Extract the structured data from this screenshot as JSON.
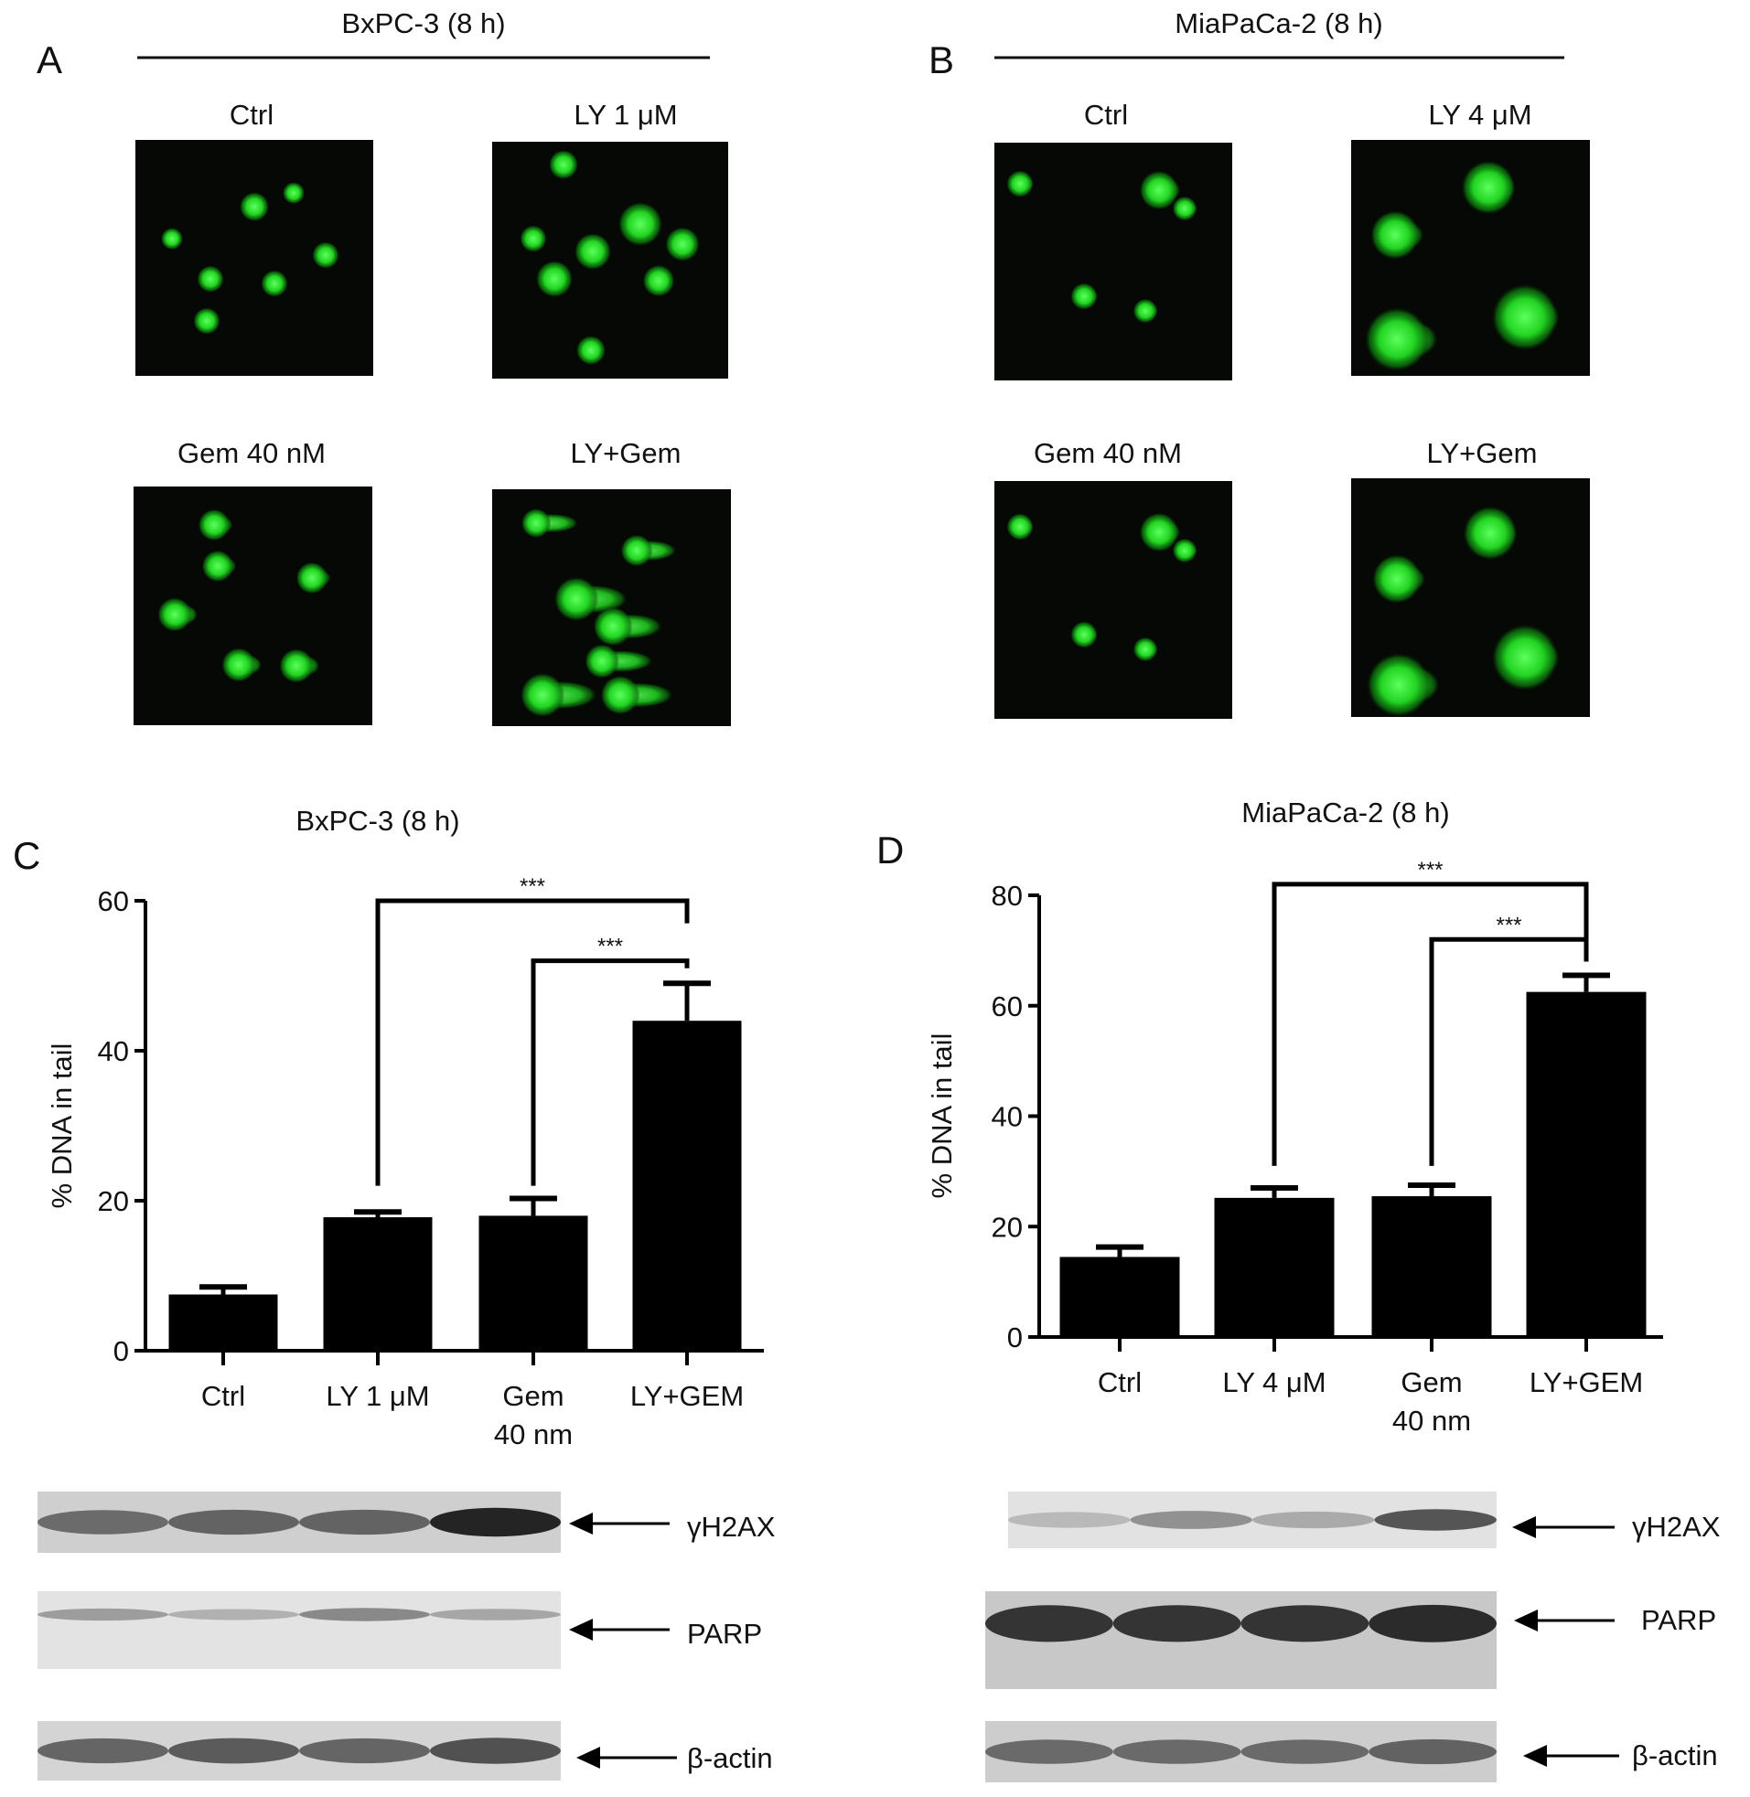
{
  "panels": {
    "A": {
      "letter": "A",
      "title": "BxPC-3 (8 h)",
      "images": [
        "Ctrl",
        "LY 1 μM",
        "Gem 40 nM",
        "LY+Gem"
      ]
    },
    "B": {
      "letter": "B",
      "title": "MiaPaCa-2 (8 h)",
      "images": [
        "Ctrl",
        "LY 4 μM",
        "Gem 40 nM",
        "LY+Gem"
      ]
    },
    "C": {
      "letter": "C"
    },
    "D": {
      "letter": "D"
    }
  },
  "colors": {
    "comet": "#2fdc2f",
    "background": "#050805",
    "bars": "#000000"
  },
  "chart_data": [
    {
      "type": "bar",
      "title": "BxPC-3 (8 h)",
      "ylabel": "% DNA in tail",
      "xlabel": "",
      "ylim": [
        0,
        60
      ],
      "yticks": [
        "0",
        "20",
        "40",
        "60"
      ],
      "categories": [
        "Ctrl",
        "LY 1 μM",
        "Gem|40 nm",
        "LY+GEM"
      ],
      "values": [
        7.5,
        17.8,
        18,
        44
      ],
      "error_upper": [
        8.5,
        18.5,
        20.3,
        49
      ],
      "significance": [
        {
          "from": "LY 1 μM",
          "to": "LY+GEM",
          "label": "***"
        },
        {
          "from": "Gem|40 nm",
          "to": "LY+GEM",
          "label": "***"
        }
      ],
      "grid": false
    },
    {
      "type": "bar",
      "title": "MiaPaCa-2 (8 h)",
      "ylabel": "% DNA in tail",
      "xlabel": "",
      "ylim": [
        0,
        80
      ],
      "yticks": [
        "0",
        "20",
        "40",
        "60",
        "80"
      ],
      "categories": [
        "Ctrl",
        "LY 4 μM",
        "Gem|40 nm",
        "LY+GEM"
      ],
      "values": [
        14.5,
        25.2,
        25.5,
        62.5
      ],
      "error_upper": [
        16.3,
        27,
        27.5,
        65.5
      ],
      "significance": [
        {
          "from": "LY 4 μM",
          "to": "LY+GEM",
          "label": "***"
        },
        {
          "from": "Gem|40 nm",
          "to": "LY+GEM",
          "label": "***"
        }
      ],
      "grid": false
    }
  ],
  "blots": {
    "left": [
      "γH2AX",
      "PARP",
      "β-actin"
    ],
    "right": [
      "γH2AX",
      "PARP",
      "β-actin"
    ]
  }
}
